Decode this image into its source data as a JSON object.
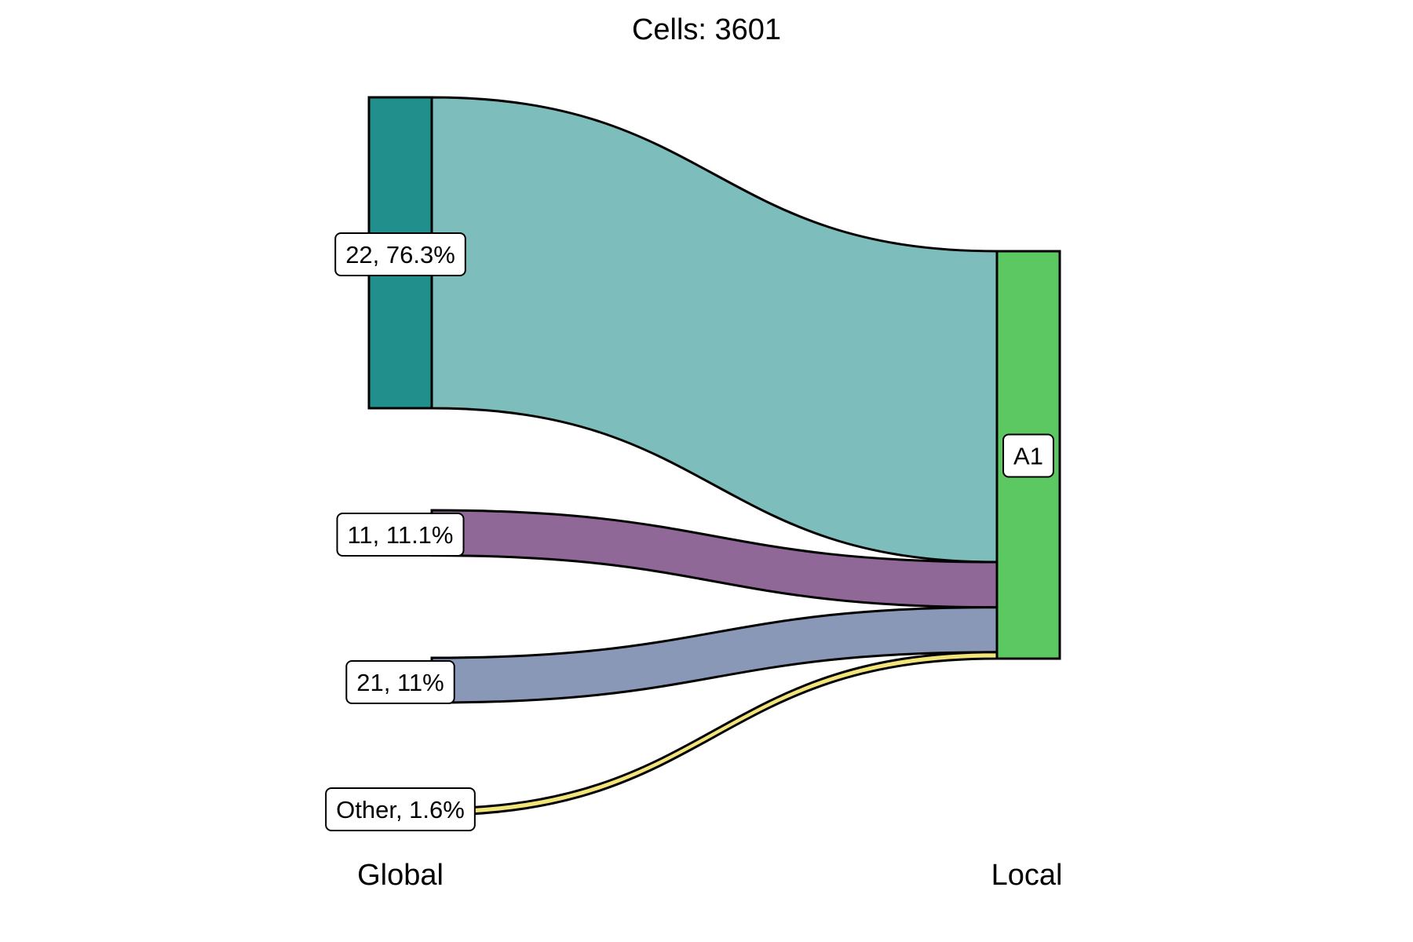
{
  "chart_data": {
    "type": "sankey",
    "title": "Cells:  3601",
    "axes": [
      "Global",
      "Local"
    ],
    "total": 3601,
    "sources": [
      {
        "name": "22",
        "label": "22, 76.3%",
        "percent": 76.3,
        "color": "#21908C",
        "flow_color": "#7DBDBB"
      },
      {
        "name": "11",
        "label": "11, 11.1%",
        "percent": 11.1,
        "color": "#8F6898",
        "flow_color": "#8F6898"
      },
      {
        "name": "21",
        "label": "21, 11%",
        "percent": 11.0,
        "color": "#8A98B8",
        "flow_color": "#8A98B8"
      },
      {
        "name": "Other",
        "label": "Other, 1.6%",
        "percent": 1.6,
        "color": "#F2E47A",
        "flow_color": "#F2E47A"
      }
    ],
    "targets": [
      {
        "name": "A1",
        "label": "A1",
        "color": "#5BC862"
      }
    ],
    "flows": [
      {
        "source": "22",
        "target": "A1",
        "percent": 76.3
      },
      {
        "source": "11",
        "target": "A1",
        "percent": 11.1
      },
      {
        "source": "21",
        "target": "A1",
        "percent": 11.0
      },
      {
        "source": "Other",
        "target": "A1",
        "percent": 1.6
      }
    ]
  }
}
